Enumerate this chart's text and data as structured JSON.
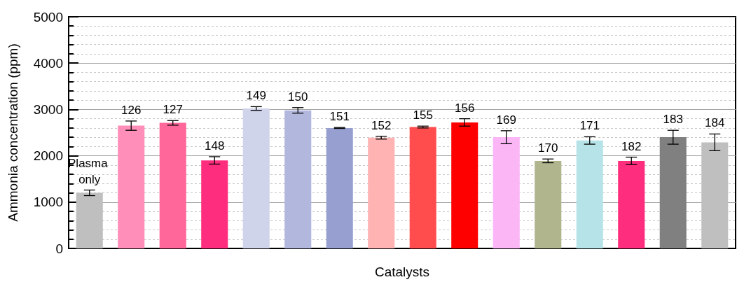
{
  "chart_data": {
    "type": "bar",
    "xlabel": "Catalysts",
    "ylabel": "Ammonia concentration (ppm)",
    "categories": [
      "Plasma only",
      "126",
      "127",
      "148",
      "149",
      "150",
      "151",
      "152",
      "155",
      "156",
      "169",
      "170",
      "171",
      "182",
      "183",
      "184"
    ],
    "values": [
      1200,
      2650,
      2710,
      1900,
      3020,
      2980,
      2600,
      2390,
      2620,
      2720,
      2400,
      1890,
      2330,
      1890,
      2400,
      2290
    ],
    "errors": [
      60,
      100,
      50,
      80,
      40,
      60,
      10,
      30,
      20,
      80,
      140,
      40,
      80,
      80,
      150,
      180
    ],
    "colors": [
      "#bfbfbf",
      "#ff8fb9",
      "#ff6699",
      "#ff2d7d",
      "#d0d4ea",
      "#b2b7de",
      "#969fcf",
      "#ffb3b3",
      "#ff4d4d",
      "#ff0000",
      "#fbb6f6",
      "#b0b58e",
      "#b6e3e8",
      "#ff2d7d",
      "#808080",
      "#bfbfbf"
    ],
    "ylim": [
      0,
      5000
    ],
    "yticks": [
      0,
      1000,
      2000,
      3000,
      4000,
      5000
    ],
    "grid": "y",
    "tick_labels": "y"
  }
}
